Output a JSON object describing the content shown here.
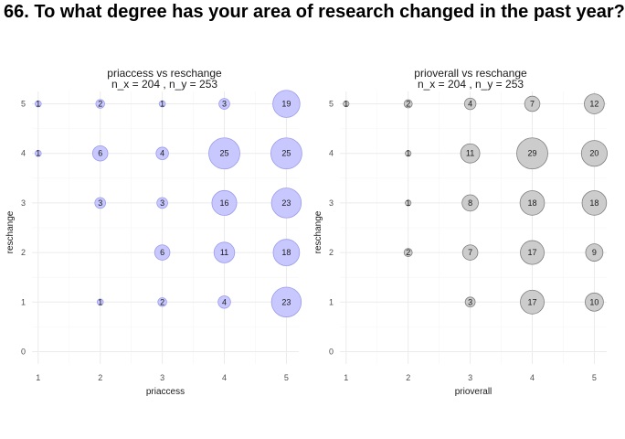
{
  "page": {
    "title": "66. To what degree has your area of research changed in the past year?"
  },
  "chart_data": [
    {
      "type": "scatter",
      "title": "priaccess vs reschange",
      "subtitle": "n_x = 204 , n_y = 253",
      "xlabel": "priaccess",
      "ylabel": "reschange",
      "x_ticks": [
        1,
        2,
        3,
        4,
        5
      ],
      "y_ticks": [
        0,
        1,
        2,
        3,
        4,
        5
      ],
      "xlim": [
        0.9,
        5.2
      ],
      "ylim": [
        -0.25,
        5.25
      ],
      "grid": true,
      "fill_color": "#c8c8ff",
      "stroke_color": "#9a9aee",
      "points": [
        {
          "x": 1,
          "y": 5,
          "n": 1
        },
        {
          "x": 2,
          "y": 5,
          "n": 2
        },
        {
          "x": 3,
          "y": 5,
          "n": 1
        },
        {
          "x": 4,
          "y": 5,
          "n": 3
        },
        {
          "x": 5,
          "y": 5,
          "n": 19
        },
        {
          "x": 1,
          "y": 4,
          "n": 1
        },
        {
          "x": 2,
          "y": 4,
          "n": 6
        },
        {
          "x": 3,
          "y": 4,
          "n": 4
        },
        {
          "x": 4,
          "y": 4,
          "n": 25
        },
        {
          "x": 5,
          "y": 4,
          "n": 25
        },
        {
          "x": 2,
          "y": 3,
          "n": 3
        },
        {
          "x": 3,
          "y": 3,
          "n": 3
        },
        {
          "x": 4,
          "y": 3,
          "n": 16
        },
        {
          "x": 5,
          "y": 3,
          "n": 23
        },
        {
          "x": 3,
          "y": 2,
          "n": 6
        },
        {
          "x": 4,
          "y": 2,
          "n": 11
        },
        {
          "x": 5,
          "y": 2,
          "n": 18
        },
        {
          "x": 2,
          "y": 1,
          "n": 1
        },
        {
          "x": 3,
          "y": 1,
          "n": 2
        },
        {
          "x": 4,
          "y": 1,
          "n": 4
        },
        {
          "x": 5,
          "y": 1,
          "n": 23
        }
      ]
    },
    {
      "type": "scatter",
      "title": "prioverall vs reschange",
      "subtitle": "n_x = 204 , n_y = 253",
      "xlabel": "prioverall",
      "ylabel": "reschange",
      "x_ticks": [
        1,
        2,
        3,
        4,
        5
      ],
      "y_ticks": [
        0,
        1,
        2,
        3,
        4,
        5
      ],
      "xlim": [
        0.9,
        5.2
      ],
      "ylim": [
        -0.25,
        5.25
      ],
      "grid": true,
      "fill_color": "#cccccc",
      "stroke_color": "#7f7f7f",
      "points": [
        {
          "x": 1,
          "y": 5,
          "n": 1
        },
        {
          "x": 2,
          "y": 5,
          "n": 2
        },
        {
          "x": 3,
          "y": 5,
          "n": 4
        },
        {
          "x": 4,
          "y": 5,
          "n": 7
        },
        {
          "x": 5,
          "y": 5,
          "n": 12
        },
        {
          "x": 2,
          "y": 4,
          "n": 1
        },
        {
          "x": 3,
          "y": 4,
          "n": 11
        },
        {
          "x": 4,
          "y": 4,
          "n": 29
        },
        {
          "x": 5,
          "y": 4,
          "n": 20
        },
        {
          "x": 2,
          "y": 3,
          "n": 1
        },
        {
          "x": 3,
          "y": 3,
          "n": 8
        },
        {
          "x": 4,
          "y": 3,
          "n": 18
        },
        {
          "x": 5,
          "y": 3,
          "n": 18
        },
        {
          "x": 2,
          "y": 2,
          "n": 2
        },
        {
          "x": 3,
          "y": 2,
          "n": 7
        },
        {
          "x": 4,
          "y": 2,
          "n": 17
        },
        {
          "x": 5,
          "y": 2,
          "n": 9
        },
        {
          "x": 3,
          "y": 1,
          "n": 3
        },
        {
          "x": 4,
          "y": 1,
          "n": 17
        },
        {
          "x": 5,
          "y": 1,
          "n": 10
        }
      ]
    }
  ]
}
